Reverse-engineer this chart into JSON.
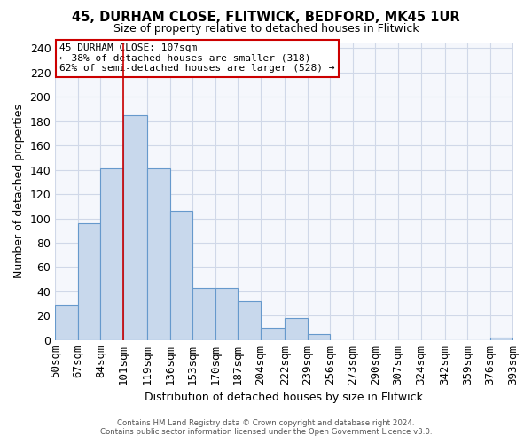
{
  "title": "45, DURHAM CLOSE, FLITWICK, BEDFORD, MK45 1UR",
  "subtitle": "Size of property relative to detached houses in Flitwick",
  "xlabel": "Distribution of detached houses by size in Flitwick",
  "ylabel": "Number of detached properties",
  "bar_color": "#c8d8ec",
  "bar_edge_color": "#6699cc",
  "grid_color": "#d0d8e8",
  "background_color": "#ffffff",
  "plot_bg_color": "#f5f7fc",
  "annotation_box_color": "#ffffff",
  "annotation_box_edge": "#cc0000",
  "vline_color": "#cc0000",
  "bins": [
    50,
    67,
    84,
    101,
    119,
    136,
    153,
    170,
    187,
    204,
    222,
    239,
    256,
    273,
    290,
    307,
    324,
    342,
    359,
    376,
    393
  ],
  "counts": [
    29,
    96,
    141,
    185,
    141,
    106,
    43,
    43,
    32,
    10,
    18,
    5,
    0,
    0,
    0,
    0,
    0,
    0,
    0,
    2
  ],
  "tick_labels": [
    "50sqm",
    "67sqm",
    "84sqm",
    "101sqm",
    "119sqm",
    "136sqm",
    "153sqm",
    "170sqm",
    "187sqm",
    "204sqm",
    "222sqm",
    "239sqm",
    "256sqm",
    "273sqm",
    "290sqm",
    "307sqm",
    "324sqm",
    "342sqm",
    "359sqm",
    "376sqm",
    "393sqm"
  ],
  "vline_x": 101,
  "annotation_title": "45 DURHAM CLOSE: 107sqm",
  "annotation_line1": "← 38% of detached houses are smaller (318)",
  "annotation_line2": "62% of semi-detached houses are larger (528) →",
  "footer_line1": "Contains HM Land Registry data © Crown copyright and database right 2024.",
  "footer_line2": "Contains public sector information licensed under the Open Government Licence v3.0.",
  "ylim": [
    0,
    245
  ],
  "yticks": [
    0,
    20,
    40,
    60,
    80,
    100,
    120,
    140,
    160,
    180,
    200,
    220,
    240
  ]
}
